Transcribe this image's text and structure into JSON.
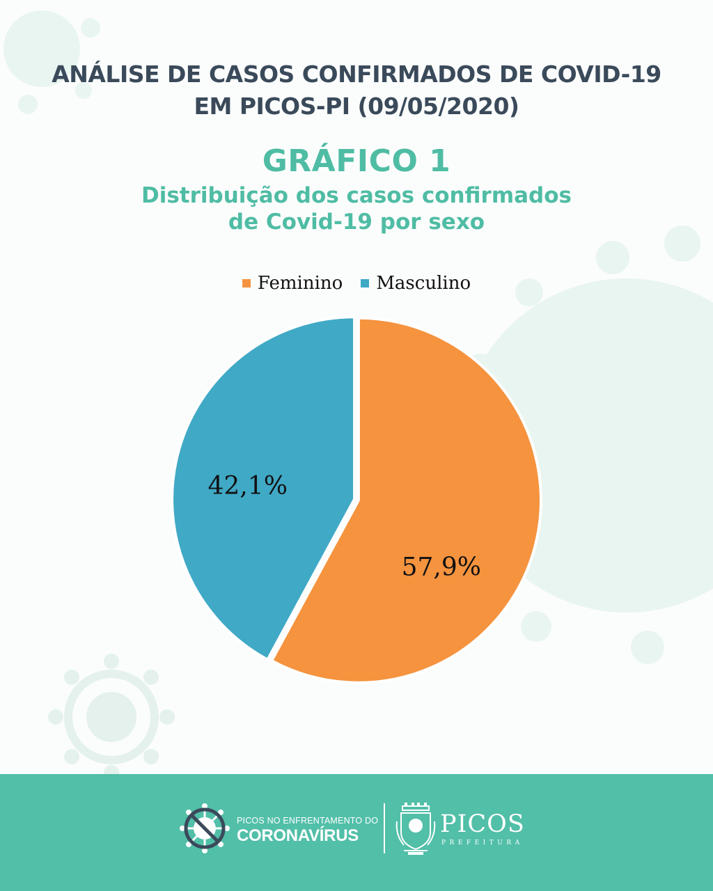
{
  "header": {
    "title_line1": "ANÁLISE DE CASOS CONFIRMADOS DE COVID-19",
    "title_line2": "EM PICOS-PI (09/05/2020)"
  },
  "chart_data": {
    "type": "pie",
    "title": "GRÁFICO 1",
    "subtitle_line1": "Distribuição dos casos confirmados",
    "subtitle_line2": "de Covid-19 por sexo",
    "legend_position": "top",
    "series": [
      {
        "name": "Feminino",
        "value": 57.9,
        "label": "57,9%",
        "color": "#f5933e"
      },
      {
        "name": "Masculino",
        "value": 42.1,
        "label": "42,1%",
        "color": "#40a9c6"
      }
    ]
  },
  "footer": {
    "campaign_small": "PICOS NO ENFRENTAMENTO DO",
    "campaign_big": "CORONAVÍRUS",
    "prefeitura_name": "PICOS",
    "prefeitura_sub": "PREFEITURA"
  },
  "colors": {
    "footer_bg": "#52bfa8",
    "accent": "#4fbca4",
    "title": "#3a4a5a",
    "background_virus": "#e8f4ef"
  },
  "icons": [
    "virus-background-icon",
    "no-virus-icon",
    "city-crest-icon"
  ]
}
